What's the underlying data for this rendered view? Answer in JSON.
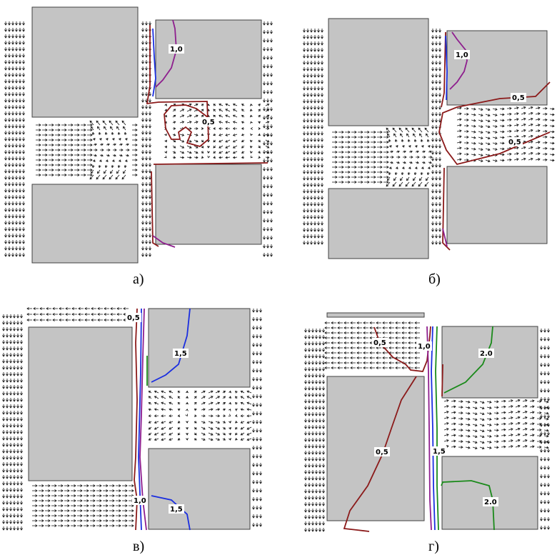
{
  "panels": [
    {
      "id": "a",
      "caption": "а)",
      "labels": [
        "1,0",
        "0,5"
      ]
    },
    {
      "id": "b",
      "caption": "б)",
      "labels": [
        "1,0",
        "0,5",
        "0,5"
      ]
    },
    {
      "id": "v",
      "caption": "в)",
      "labels": [
        "0,5",
        "1,5",
        "1,0",
        "1,5"
      ]
    },
    {
      "id": "g",
      "caption": "г)",
      "labels": [
        "0,5",
        "1,0",
        "2.0",
        "0,5",
        "1,5",
        "2.0"
      ]
    }
  ],
  "colors": {
    "block": "#c4c4c4",
    "arrow": "#111111",
    "iso_red": "#8b1a1a",
    "iso_purple": "#8e1e8e",
    "iso_blue": "#1a2ee0",
    "iso_green": "#1a8a1a"
  }
}
